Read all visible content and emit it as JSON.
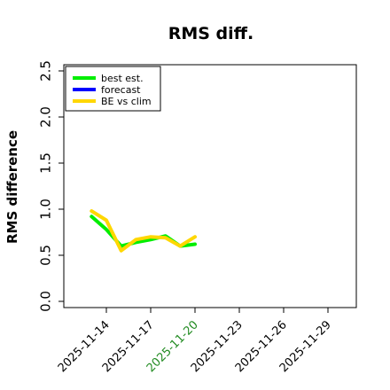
{
  "chart_data": {
    "type": "line",
    "title": "RMS diff.",
    "xlabel": "",
    "ylabel": "RMS difference",
    "x_ticks": [
      "2025-11-14",
      "2025-11-17",
      "2025-11-20",
      "2025-11-23",
      "2025-11-26",
      "2025-11-29"
    ],
    "highlighted_tick": "2025-11-20",
    "xlim": [
      "2025-11-12",
      "2025-11-30"
    ],
    "ylim": [
      0,
      2.6
    ],
    "y_ticks": [
      "0.0",
      "0.5",
      "1.0",
      "1.5",
      "2.0",
      "2.5"
    ],
    "legend_position": "top-left",
    "series": [
      {
        "name": "best est.",
        "color": "#00ee00",
        "x": [
          "2025-11-13",
          "2025-11-14",
          "2025-11-15",
          "2025-11-16",
          "2025-11-17",
          "2025-11-18",
          "2025-11-19",
          "2025-11-20"
        ],
        "y": [
          0.92,
          0.78,
          0.6,
          0.64,
          0.67,
          0.71,
          0.6,
          0.62
        ]
      },
      {
        "name": "forecast",
        "color": "#0000ff",
        "x": [],
        "y": []
      },
      {
        "name": "BE vs clim",
        "color": "#ffd700",
        "x": [
          "2025-11-13",
          "2025-11-14",
          "2025-11-15",
          "2025-11-16",
          "2025-11-17",
          "2025-11-18",
          "2025-11-19",
          "2025-11-20"
        ],
        "y": [
          0.98,
          0.88,
          0.55,
          0.67,
          0.7,
          0.69,
          0.6,
          0.7
        ]
      }
    ]
  }
}
